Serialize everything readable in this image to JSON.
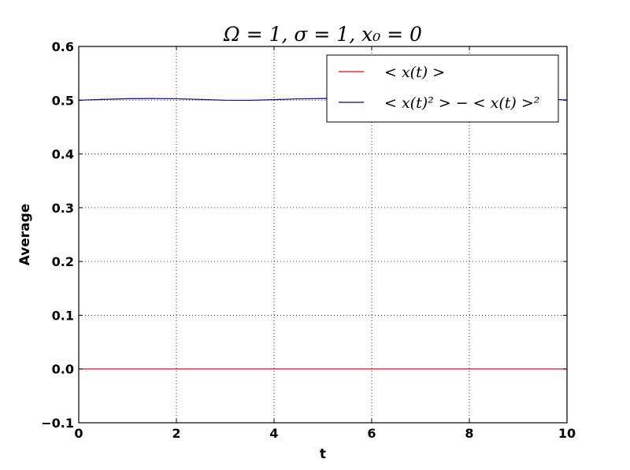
{
  "chart_data": {
    "type": "line",
    "title": "Ω = 1, σ = 1, x₀ = 0",
    "xlabel": "t",
    "ylabel": "Average",
    "xlim": [
      0,
      10
    ],
    "ylim": [
      -0.1,
      0.6
    ],
    "xticks": [
      0,
      2,
      4,
      6,
      8,
      10
    ],
    "xtick_labels": [
      "0",
      "2",
      "4",
      "6",
      "8",
      "10"
    ],
    "yticks": [
      -0.1,
      0.0,
      0.1,
      0.2,
      0.3,
      0.4,
      0.5,
      0.6
    ],
    "ytick_labels": [
      "−0.1",
      "0.0",
      "0.1",
      "0.2",
      "0.3",
      "0.4",
      "0.5",
      "0.6"
    ],
    "grid": true,
    "legend_position": "top-right",
    "series": [
      {
        "name": "< x(t) >",
        "color": "#ff0000",
        "x": [
          0,
          1,
          2,
          3,
          4,
          5,
          6,
          7,
          8,
          9,
          10
        ],
        "y": [
          0,
          0,
          0,
          0,
          0,
          0,
          0,
          0,
          0,
          0,
          0
        ]
      },
      {
        "name": "< x(t)² > − < x(t) >²",
        "color": "#0000bb",
        "x": [
          0,
          0.5,
          1.0,
          1.5,
          2.0,
          2.5,
          3.0,
          3.5,
          4.0,
          4.5,
          5.0,
          5.5,
          6.0,
          6.5,
          7.0,
          7.5,
          8.0,
          8.5,
          9.0,
          9.5,
          10.0
        ],
        "y": [
          0.5,
          0.5015,
          0.5028,
          0.5032,
          0.5027,
          0.5013,
          0.5,
          0.4998,
          0.501,
          0.5025,
          0.5032,
          0.503,
          0.5017,
          0.5003,
          0.4997,
          0.5005,
          0.502,
          0.5031,
          0.5031,
          0.5019,
          0.5005
        ]
      }
    ]
  }
}
